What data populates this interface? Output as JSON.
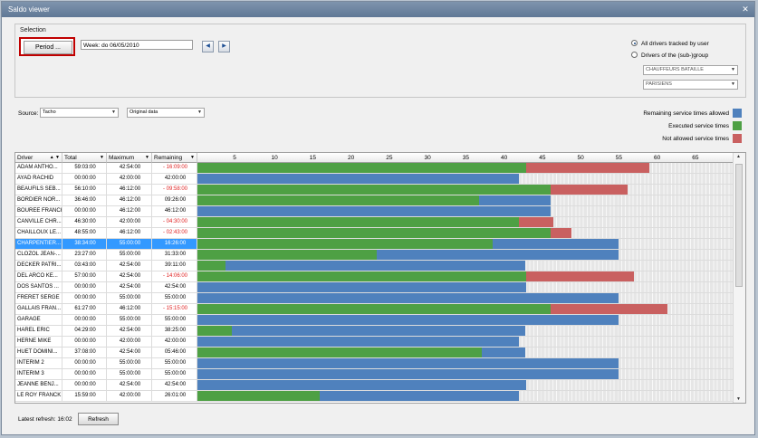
{
  "window": {
    "title": "Saldo viewer",
    "close_glyph": "✕"
  },
  "selection": {
    "group_label": "Selection",
    "period_button": "Period ...",
    "week_value": "Week: do 06/05/2010",
    "prev_glyph": "◀",
    "next_glyph": "▶",
    "radio_all": "All drivers tracked by user",
    "radio_group": "Drivers of the (sub-)group",
    "group_dropdown_1": "CHAUFFEURS BATAILLE",
    "group_dropdown_2": "PARISIENS"
  },
  "source": {
    "label": "Source:",
    "value": "Tacho",
    "view_value": "Original data"
  },
  "legend": [
    {
      "label": "Remaining service times allowed",
      "color": "#4f81bd"
    },
    {
      "label": "Executed service times",
      "color": "#4ea044"
    },
    {
      "label": "Not allowed service times",
      "color": "#c96060"
    }
  ],
  "colors": {
    "remaining": "#4f81bd",
    "executed": "#4ea044",
    "not_allowed": "#c96060",
    "unused": "#e6e6e6",
    "selected": "#3399ff"
  },
  "columns": {
    "driver": "Driver",
    "total": "Total",
    "maximum": "Maximum",
    "remaining": "Remaining"
  },
  "axis_ticks": [
    "5",
    "10",
    "15",
    "20",
    "25",
    "30",
    "35",
    "40",
    "45",
    "50",
    "55",
    "60",
    "65"
  ],
  "rows": [
    {
      "driver": "ADAM ANTHO...",
      "total": "59:03:00",
      "maximum": "42:54:00",
      "remaining": "- 16:09:00",
      "neg": true,
      "exec": 59.05,
      "max": 42.9
    },
    {
      "driver": "AYAD RACHID",
      "total": "00:00:00",
      "maximum": "42:00:00",
      "remaining": "42:00:00",
      "neg": false,
      "exec": 0,
      "max": 42.0
    },
    {
      "driver": "BEAUFILS SEB...",
      "total": "56:10:00",
      "maximum": "46:12:00",
      "remaining": "- 09:58:00",
      "neg": true,
      "exec": 56.17,
      "max": 46.2
    },
    {
      "driver": "BORDIER NOR...",
      "total": "36:46:00",
      "maximum": "46:12:00",
      "remaining": "09:26:00",
      "neg": false,
      "exec": 36.77,
      "max": 46.2
    },
    {
      "driver": "BOUREE FRANCK",
      "total": "00:00:00",
      "maximum": "46:12:00",
      "remaining": "46:12:00",
      "neg": false,
      "exec": 0,
      "max": 46.2
    },
    {
      "driver": "CANVILLE CHR...",
      "total": "46:30:00",
      "maximum": "42:00:00",
      "remaining": "- 04:30:00",
      "neg": true,
      "exec": 46.5,
      "max": 42.0
    },
    {
      "driver": "CHAILLOUX LE...",
      "total": "48:55:00",
      "maximum": "46:12:00",
      "remaining": "- 02:43:00",
      "neg": true,
      "exec": 48.92,
      "max": 46.2
    },
    {
      "driver": "CHARPENTIER...",
      "total": "38:34:00",
      "maximum": "55:00:00",
      "remaining": "16:26:00",
      "neg": false,
      "exec": 38.57,
      "max": 55.0,
      "selected": true
    },
    {
      "driver": "CLOZOL JEAN-...",
      "total": "23:27:00",
      "maximum": "55:00:00",
      "remaining": "31:33:00",
      "neg": false,
      "exec": 23.45,
      "max": 55.0
    },
    {
      "driver": "DECKER PATRI...",
      "total": "03:43:00",
      "maximum": "42:54:00",
      "remaining": "39:11:00",
      "neg": false,
      "exec": 3.72,
      "max": 42.9
    },
    {
      "driver": "DEL ARCO KE...",
      "total": "57:00:00",
      "maximum": "42:54:00",
      "remaining": "- 14:06:00",
      "neg": true,
      "exec": 57.0,
      "max": 42.9
    },
    {
      "driver": "DOS SANTOS ...",
      "total": "00:00:00",
      "maximum": "42:54:00",
      "remaining": "42:54:00",
      "neg": false,
      "exec": 0,
      "max": 42.9
    },
    {
      "driver": "FRERET SERGE",
      "total": "00:00:00",
      "maximum": "55:00:00",
      "remaining": "55:00:00",
      "neg": false,
      "exec": 0,
      "max": 55.0
    },
    {
      "driver": "GALLAIS FRAN...",
      "total": "61:27:00",
      "maximum": "46:12:00",
      "remaining": "- 15:15:00",
      "neg": true,
      "exec": 61.45,
      "max": 46.2
    },
    {
      "driver": "GARAGE",
      "total": "00:00:00",
      "maximum": "55:00:00",
      "remaining": "55:00:00",
      "neg": false,
      "exec": 0,
      "max": 55.0
    },
    {
      "driver": "HAREL ERIC",
      "total": "04:29:00",
      "maximum": "42:54:00",
      "remaining": "38:25:00",
      "neg": false,
      "exec": 4.48,
      "max": 42.9
    },
    {
      "driver": "HERNE MIKE",
      "total": "00:00:00",
      "maximum": "42:00:00",
      "remaining": "42:00:00",
      "neg": false,
      "exec": 0,
      "max": 42.0
    },
    {
      "driver": "HUET DOMINI...",
      "total": "37:08:00",
      "maximum": "42:54:00",
      "remaining": "05:46:00",
      "neg": false,
      "exec": 37.13,
      "max": 42.9
    },
    {
      "driver": "INTERIM 2",
      "total": "00:00:00",
      "maximum": "55:00:00",
      "remaining": "55:00:00",
      "neg": false,
      "exec": 0,
      "max": 55.0
    },
    {
      "driver": "INTERIM 3",
      "total": "00:00:00",
      "maximum": "55:00:00",
      "remaining": "55:00:00",
      "neg": false,
      "exec": 0,
      "max": 55.0
    },
    {
      "driver": "JEANNE BENJ...",
      "total": "00:00:00",
      "maximum": "42:54:00",
      "remaining": "42:54:00",
      "neg": false,
      "exec": 0,
      "max": 42.9
    },
    {
      "driver": "LE ROY FRANCK",
      "total": "15:59:00",
      "maximum": "42:00:00",
      "remaining": "26:01:00",
      "neg": false,
      "exec": 15.98,
      "max": 42.0
    }
  ],
  "footer": {
    "latest_refresh_label": "Latest refresh:",
    "latest_refresh_time": "16:02",
    "refresh_button": "Refresh"
  }
}
